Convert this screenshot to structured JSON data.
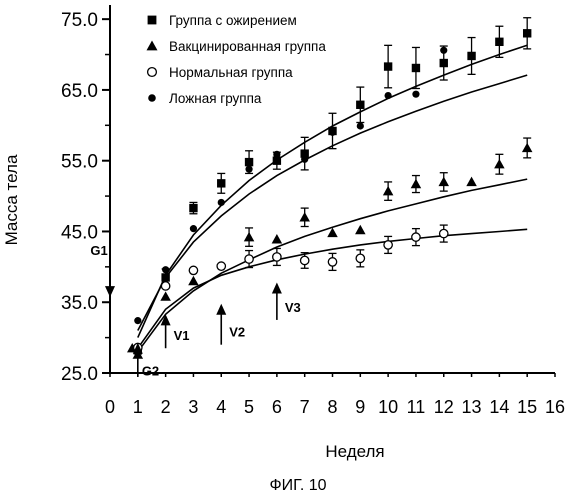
{
  "chart_data": {
    "type": "scatter",
    "title": "",
    "xlabel": "Неделя",
    "ylabel": "Масса тела",
    "xlim": [
      0,
      16
    ],
    "ylim": [
      25,
      77
    ],
    "x_ticks": [
      0,
      1,
      2,
      3,
      4,
      5,
      6,
      7,
      8,
      9,
      10,
      11,
      12,
      13,
      14,
      15,
      16
    ],
    "y_ticks": [
      {
        "value": 25,
        "label": "25.0"
      },
      {
        "value": 35,
        "label": "35.0"
      },
      {
        "value": 45,
        "label": "45.0"
      },
      {
        "value": 55,
        "label": "55.0"
      },
      {
        "value": 65,
        "label": "65.0"
      },
      {
        "value": 75,
        "label": "75.0"
      }
    ],
    "grid": false,
    "legend_position": "top",
    "series": [
      {
        "name": "Группа с ожирением",
        "marker": "square",
        "x": [
          1,
          2,
          3,
          4,
          5,
          6,
          7,
          8,
          9,
          10,
          11,
          12,
          13,
          14,
          15
        ],
        "y": [
          28.2,
          38.5,
          48.3,
          51.8,
          54.8,
          55.0,
          56.0,
          59.2,
          62.9,
          68.3,
          68.1,
          68.8,
          69.8,
          71.8,
          73.0
        ],
        "err": [
          0,
          1.2,
          0.8,
          1.4,
          1.6,
          1.2,
          2.3,
          2.5,
          2.5,
          3.0,
          2.9,
          2.4,
          2.6,
          2.2,
          2.2
        ]
      },
      {
        "name": "Вакцинированная группа",
        "marker": "triangle",
        "x": [
          0.8,
          1,
          2,
          3,
          5,
          6,
          7,
          8,
          9,
          10,
          11,
          12,
          13,
          14,
          15
        ],
        "y": [
          28.5,
          27.6,
          35.8,
          38.0,
          44.2,
          43.9,
          47.0,
          44.8,
          45.2,
          50.7,
          51.7,
          52.0,
          52.0,
          54.5,
          56.8
        ],
        "err": [
          0,
          0,
          0,
          0,
          1.3,
          0,
          1.3,
          0,
          0,
          1.3,
          1.2,
          1.3,
          0,
          1.4,
          1.4
        ]
      },
      {
        "name": "Нормальная группа",
        "marker": "circle-open",
        "x": [
          1,
          2,
          3,
          4,
          5,
          6,
          7,
          8,
          9,
          10,
          11,
          12
        ],
        "y": [
          28.6,
          37.3,
          39.5,
          40.1,
          41.1,
          41.4,
          40.9,
          40.7,
          41.2,
          43.1,
          44.2,
          44.7
        ],
        "err": [
          0,
          0,
          0,
          0,
          1.2,
          1.2,
          1.1,
          1.2,
          1.2,
          1.2,
          1.2,
          1.2
        ]
      },
      {
        "name": "Ложная группа",
        "marker": "circle-filled",
        "x": [
          1,
          2,
          3,
          4,
          5,
          6,
          7,
          8,
          9,
          10,
          11,
          12
        ],
        "y": [
          32.4,
          39.6,
          45.4,
          49.1,
          53.8,
          55.9,
          55.2,
          59.0,
          59.9,
          64.2,
          64.4,
          70.6
        ],
        "err": [
          0,
          0,
          0,
          0,
          0,
          0,
          0,
          0,
          0,
          0,
          0,
          0
        ]
      }
    ],
    "trend_lines": [
      {
        "name": "Группа с ожирением",
        "x": [
          1,
          2,
          3,
          4,
          5,
          6,
          7,
          8,
          9,
          10,
          11,
          12,
          13,
          14,
          15
        ],
        "y": [
          30.0,
          38.8,
          44.5,
          48.7,
          52.2,
          55.1,
          57.6,
          59.9,
          61.9,
          63.8,
          65.5,
          67.1,
          68.6,
          70.0,
          71.3
        ]
      },
      {
        "name": "Ложная группа",
        "x": [
          1,
          2,
          3,
          4,
          5,
          6,
          7,
          8,
          9,
          10,
          11,
          12,
          13,
          14,
          15
        ],
        "y": [
          31.0,
          38.5,
          43.5,
          47.2,
          50.3,
          52.9,
          55.1,
          57.1,
          58.9,
          60.5,
          62.0,
          63.4,
          64.7,
          65.9,
          67.1
        ]
      },
      {
        "name": "Вакцинированная группа",
        "x": [
          1,
          2,
          3,
          4,
          5,
          6,
          7,
          8,
          9,
          10,
          11,
          12,
          13,
          14,
          15
        ],
        "y": [
          28.0,
          33.3,
          36.6,
          39.1,
          41.0,
          42.8,
          44.3,
          45.6,
          46.8,
          47.9,
          48.9,
          49.9,
          50.8,
          51.6,
          52.4
        ]
      },
      {
        "name": "Нормальная группа",
        "x": [
          1,
          2,
          3,
          4,
          5,
          6,
          7,
          8,
          9,
          10,
          11,
          12,
          13,
          14,
          15
        ],
        "y": [
          28.5,
          34.0,
          37.0,
          38.8,
          40.0,
          41.0,
          41.8,
          42.5,
          43.1,
          43.6,
          44.0,
          44.4,
          44.7,
          45.0,
          45.3
        ]
      }
    ],
    "annotations": [
      {
        "label": "G1",
        "x": 0,
        "y_from": 41,
        "y_to": 36,
        "direction": "down"
      },
      {
        "label": "G2",
        "x": 1,
        "y_from": 24.5,
        "y_to": 29,
        "direction": "up"
      },
      {
        "label": "V1",
        "x": 2,
        "y_from": 28.5,
        "y_to": 33,
        "direction": "up"
      },
      {
        "label": "V2",
        "x": 4,
        "y_from": 29,
        "y_to": 34.5,
        "direction": "up"
      },
      {
        "label": "V3",
        "x": 6,
        "y_from": 32.5,
        "y_to": 37.5,
        "direction": "up"
      }
    ]
  },
  "caption": "ФИГ. 10"
}
